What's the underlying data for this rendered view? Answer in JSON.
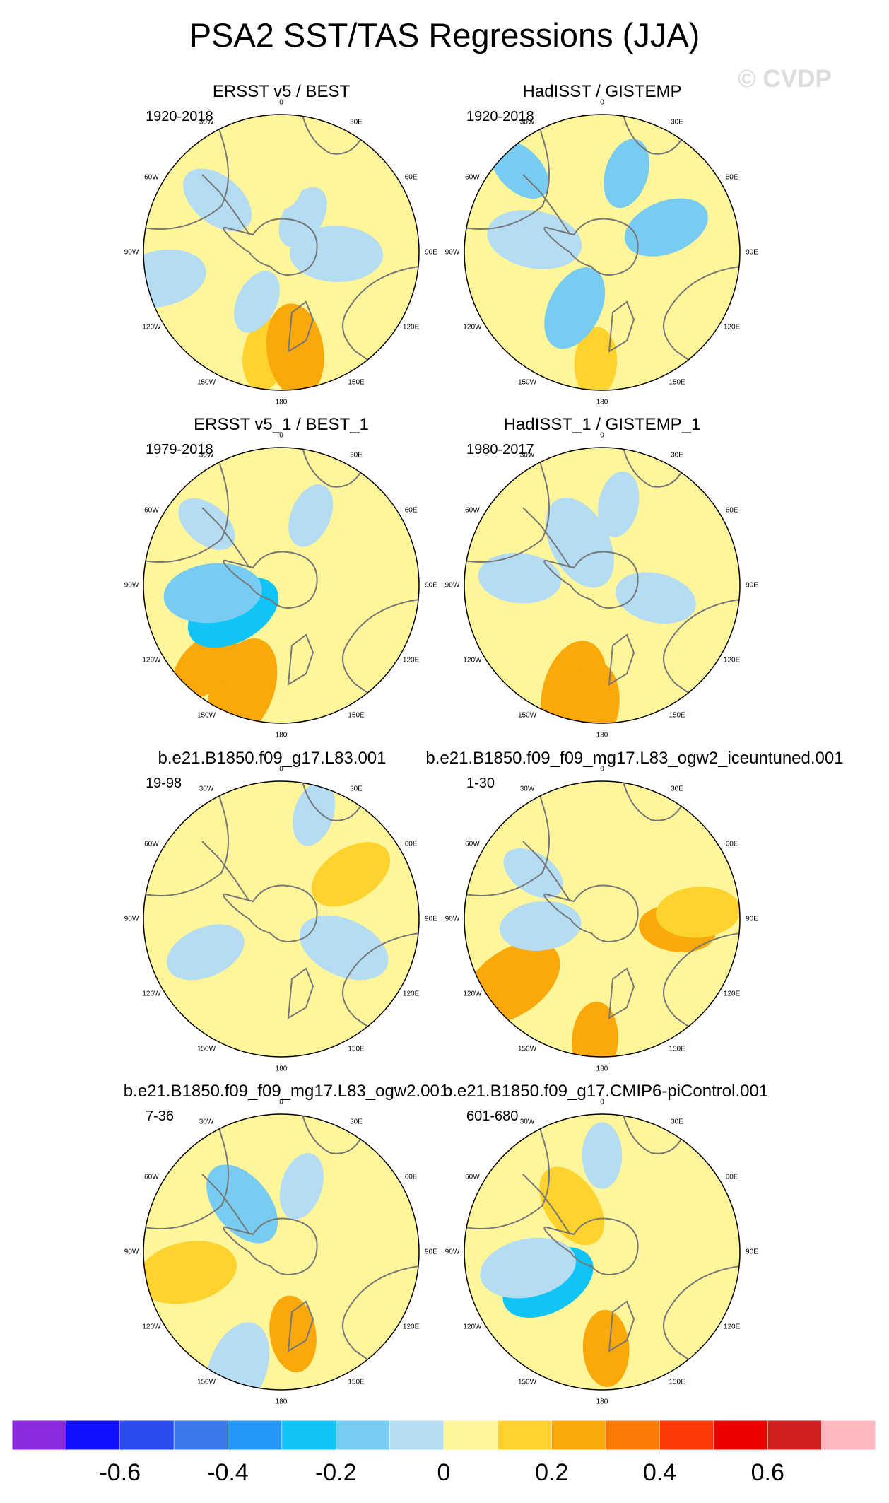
{
  "title": "PSA2 SST/TAS Regressions (JJA)",
  "watermark": "© CVDP",
  "lon_labels": [
    "0",
    "30E",
    "60E",
    "90E",
    "120E",
    "150E",
    "180",
    "150W",
    "120W",
    "90W",
    "60W",
    "30W"
  ],
  "colors": {
    "land_outline": "#777777",
    "frame": "#000000"
  },
  "chart_data": {
    "type": "polar-map",
    "variable": "SST/TAS regression onto PSA2",
    "season": "JJA",
    "projection": "south-polar stereographic",
    "colorbar": {
      "labels": [
        "-0.6",
        "-0.4",
        "-0.2",
        "0",
        "0.2",
        "0.4",
        "0.6"
      ],
      "label_values": [
        -0.6,
        -0.4,
        -0.2,
        0,
        0.2,
        0.4,
        0.6
      ],
      "levels": [
        -0.7,
        -0.6,
        -0.5,
        -0.4,
        -0.3,
        -0.2,
        -0.1,
        0,
        0.1,
        0.2,
        0.3,
        0.4,
        0.5,
        0.6,
        0.7
      ],
      "colors": [
        "#8a2be2",
        "#1010ff",
        "#2b4cf0",
        "#3a78ec",
        "#2398f8",
        "#10c4f8",
        "#78ccf2",
        "#b4dcf2",
        "#fff59a",
        "#ffd22e",
        "#fba80a",
        "#fb7a0a",
        "#fc3a06",
        "#ec0000",
        "#d21e1e",
        "#ffb8c0"
      ]
    },
    "panels": [
      {
        "title": "ERSST v5 / BEST",
        "period": "1920-2018",
        "blobs": [
          {
            "b": 0.55,
            "r": 0.3,
            "v": -0.05
          },
          {
            "b": 0.0,
            "r": 0.6,
            "v": 0.05
          },
          {
            "b": 1.6,
            "r": 0.4,
            "v": -0.05
          },
          {
            "b": 3.3,
            "r": 0.75,
            "v": 0.15
          },
          {
            "b": 3.0,
            "r": 0.72,
            "v": 0.25
          },
          {
            "b": 4.6,
            "r": 0.55,
            "v": 0.05
          },
          {
            "b": 3.6,
            "r": 0.4,
            "v": -0.05
          },
          {
            "b": 5.4,
            "r": 0.6,
            "v": -0.05
          },
          {
            "b": 4.5,
            "r": 0.9,
            "v": -0.05
          }
        ]
      },
      {
        "title": "HadISST / GISTEMP",
        "period": "1920-2018",
        "blobs": [
          {
            "b": 0.3,
            "r": 0.6,
            "v": -0.12
          },
          {
            "b": 1.2,
            "r": 0.5,
            "v": -0.15
          },
          {
            "b": 4.9,
            "r": 0.5,
            "v": -0.08
          },
          {
            "b": 3.2,
            "r": 0.8,
            "v": 0.12
          },
          {
            "b": 3.6,
            "r": 0.45,
            "v": -0.15
          },
          {
            "b": 2.5,
            "r": 0.7,
            "v": 0.05
          },
          {
            "b": 5.5,
            "r": 0.85,
            "v": -0.12
          }
        ]
      },
      {
        "title": "ERSST v5_1 / BEST_1",
        "period": "1979-2018",
        "blobs": [
          {
            "b": 0.4,
            "r": 0.55,
            "v": -0.05
          },
          {
            "b": 1.6,
            "r": 0.6,
            "v": 0.05
          },
          {
            "b": 3.5,
            "r": 0.8,
            "v": 0.2
          },
          {
            "b": 3.9,
            "r": 0.8,
            "v": 0.25
          },
          {
            "b": 4.2,
            "r": 0.4,
            "v": -0.3
          },
          {
            "b": 4.6,
            "r": 0.5,
            "v": -0.12
          },
          {
            "b": 5.4,
            "r": 0.7,
            "v": -0.05
          }
        ]
      },
      {
        "title": "HadISST_1 / GISTEMP_1",
        "period": "1980-2017",
        "blobs": [
          {
            "b": 0.2,
            "r": 0.6,
            "v": -0.06
          },
          {
            "b": 4.8,
            "r": 0.6,
            "v": -0.1
          },
          {
            "b": 3.4,
            "r": 0.8,
            "v": 0.2
          },
          {
            "b": 3.2,
            "r": 0.85,
            "v": 0.25
          },
          {
            "b": 1.8,
            "r": 0.4,
            "v": -0.08
          },
          {
            "b": 5.8,
            "r": 0.35,
            "v": -0.1
          }
        ]
      },
      {
        "title": "b.e21.B1850.f09_g17.L83.001",
        "period": "19-98",
        "blobs": [
          {
            "b": 0.3,
            "r": 0.8,
            "v": -0.05
          },
          {
            "b": 1.0,
            "r": 0.6,
            "v": 0.15
          },
          {
            "b": 2.0,
            "r": 0.5,
            "v": -0.06
          },
          {
            "b": 3.2,
            "r": 0.8,
            "v": 0.05
          },
          {
            "b": 4.3,
            "r": 0.6,
            "v": -0.08
          },
          {
            "b": 5.6,
            "r": 0.6,
            "v": 0.05
          }
        ]
      },
      {
        "title": "b.e21.B1850.f09_f09_mg17.L83_ogw2_iceuntuned.001",
        "period": "1-30",
        "blobs": [
          {
            "b": 1.7,
            "r": 0.55,
            "v": 0.2
          },
          {
            "b": 1.5,
            "r": 0.7,
            "v": 0.12
          },
          {
            "b": 4.1,
            "r": 0.8,
            "v": 0.25
          },
          {
            "b": 3.2,
            "r": 0.88,
            "v": 0.2
          },
          {
            "b": 4.6,
            "r": 0.45,
            "v": -0.08
          },
          {
            "b": 0.3,
            "r": 0.7,
            "v": 0.05
          },
          {
            "b": 5.3,
            "r": 0.6,
            "v": -0.06
          }
        ]
      },
      {
        "title": "b.e21.B1850.f09_f09_mg17.L83_ogw2.001",
        "period": "7-36",
        "blobs": [
          {
            "b": 0.3,
            "r": 0.5,
            "v": -0.08
          },
          {
            "b": 5.6,
            "r": 0.45,
            "v": -0.2
          },
          {
            "b": 4.5,
            "r": 0.7,
            "v": 0.15
          },
          {
            "b": 3.0,
            "r": 0.6,
            "v": 0.2
          },
          {
            "b": 2.0,
            "r": 0.6,
            "v": 0.05
          },
          {
            "b": 3.5,
            "r": 0.9,
            "v": -0.08
          }
        ]
      },
      {
        "title": "b.e21.B1850.f09_g17.CMIP6-piControl.001",
        "period": "601-680",
        "blobs": [
          {
            "b": 0.0,
            "r": 0.7,
            "v": -0.06
          },
          {
            "b": 4.2,
            "r": 0.45,
            "v": -0.3
          },
          {
            "b": 4.5,
            "r": 0.55,
            "v": -0.1
          },
          {
            "b": 3.1,
            "r": 0.7,
            "v": 0.2
          },
          {
            "b": 5.7,
            "r": 0.4,
            "v": 0.15
          },
          {
            "b": 1.5,
            "r": 0.8,
            "v": 0.05
          }
        ]
      }
    ]
  }
}
